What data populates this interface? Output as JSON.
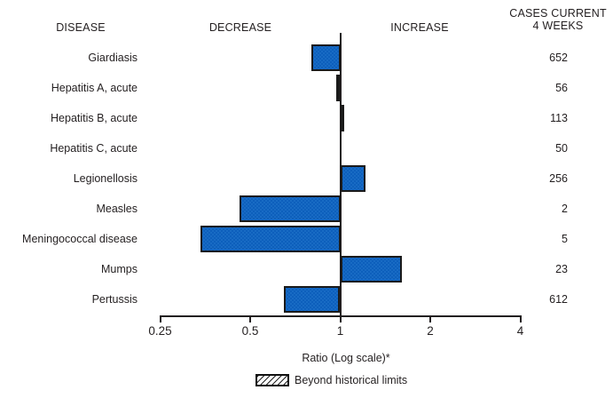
{
  "columns": {
    "disease": "DISEASE",
    "decrease": "DECREASE",
    "increase": "INCREASE",
    "cases_line1": "CASES CURRENT",
    "cases_line2": "4 WEEKS"
  },
  "chart_data": {
    "type": "bar",
    "orientation": "horizontal",
    "scale": "log",
    "title": "",
    "xlabel": "Ratio (Log scale)*",
    "xlim": [
      0.25,
      4
    ],
    "baseline": 1,
    "ticks": [
      0.25,
      0.5,
      1,
      2,
      4
    ],
    "tick_labels": [
      "0.25",
      "0.5",
      "1",
      "2",
      "4"
    ],
    "rows": [
      {
        "disease": "Giardiasis",
        "ratio": 0.8,
        "cases": "652",
        "beyond_historical_limits": false
      },
      {
        "disease": "Hepatitis A, acute",
        "ratio": 0.97,
        "cases": "56",
        "beyond_historical_limits": false
      },
      {
        "disease": "Hepatitis B, acute",
        "ratio": 1.03,
        "cases": "113",
        "beyond_historical_limits": false
      },
      {
        "disease": "Hepatitis C, acute",
        "ratio": 1.0,
        "cases": "50",
        "beyond_historical_limits": false
      },
      {
        "disease": "Legionellosis",
        "ratio": 1.21,
        "cases": "256",
        "beyond_historical_limits": false
      },
      {
        "disease": "Measles",
        "ratio": 0.46,
        "cases": "2",
        "beyond_historical_limits": false
      },
      {
        "disease": "Meningococcal disease",
        "ratio": 0.34,
        "cases": "5",
        "beyond_historical_limits": false
      },
      {
        "disease": "Mumps",
        "ratio": 1.6,
        "cases": "23",
        "beyond_historical_limits": false
      },
      {
        "disease": "Pertussis",
        "ratio": 0.65,
        "cases": "612",
        "beyond_historical_limits": false
      }
    ],
    "legend": {
      "label": "Beyond historical limits",
      "swatch": "diagonal-hatch"
    }
  },
  "colors": {
    "bar_fill": "#0d5fbc",
    "bar_fill_dot": "#3a8fdd",
    "bar_border": "#1a1a1a",
    "axis": "#231f20",
    "text": "#231f20",
    "background": "#ffffff"
  }
}
